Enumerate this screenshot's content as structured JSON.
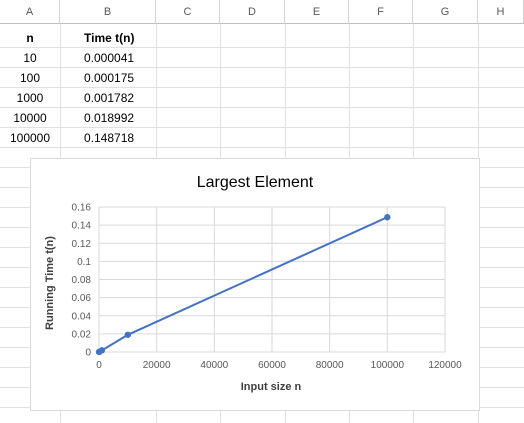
{
  "spreadsheet": {
    "columns": [
      "A",
      "B",
      "C",
      "D",
      "E",
      "F",
      "G",
      "H"
    ],
    "header": {
      "a": "n",
      "b": "Time t(n)"
    },
    "rows": [
      {
        "a": "10",
        "b": "0.000041"
      },
      {
        "a": "100",
        "b": "0.000175"
      },
      {
        "a": "1000",
        "b": "0.001782"
      },
      {
        "a": "10000",
        "b": "0.018992"
      },
      {
        "a": "100000",
        "b": "0.148718"
      }
    ]
  },
  "chart_data": {
    "type": "scatter",
    "title": "Largest Element",
    "xlabel": "Input size n",
    "ylabel": "Running Time t(n)",
    "xlim": [
      0,
      120000
    ],
    "ylim": [
      0,
      0.16
    ],
    "xticks": [
      0,
      20000,
      40000,
      60000,
      80000,
      100000,
      120000
    ],
    "yticks": [
      0,
      0.02,
      0.04,
      0.06,
      0.08,
      0.1,
      0.12,
      0.14,
      0.16
    ],
    "grid": true,
    "series": [
      {
        "color": "#4472c4",
        "x": [
          10,
          100,
          1000,
          10000,
          100000
        ],
        "y": [
          4.1e-05,
          0.000175,
          0.001782,
          0.018992,
          0.148718
        ]
      }
    ]
  }
}
